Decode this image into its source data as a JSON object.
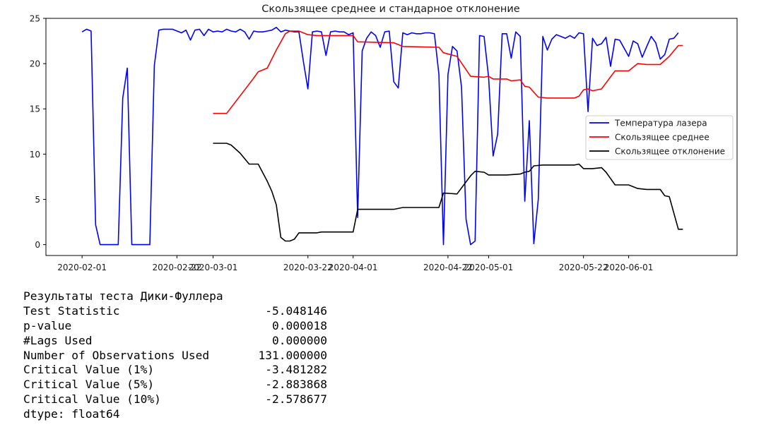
{
  "chart_data": {
    "type": "line",
    "title": "Скользящее среднее и стандарное отклонение",
    "xlabel": "",
    "ylabel": "",
    "ylim": [
      -1.2,
      25
    ],
    "xlim": [
      "2020-01-24",
      "2020-06-25"
    ],
    "yticks": [
      0,
      5,
      10,
      15,
      20,
      25
    ],
    "xticks": [
      {
        "label": "2020-02-01",
        "date": "2020-02-01"
      },
      {
        "label": "2020-02-22",
        "date": "2020-02-22"
      },
      {
        "label": "2020-03-01",
        "date": "2020-03-01"
      },
      {
        "label": "2020-03-22",
        "date": "2020-03-22"
      },
      {
        "label": "2020-04-01",
        "date": "2020-04-01"
      },
      {
        "label": "2020-04-22",
        "date": "2020-04-22"
      },
      {
        "label": "2020-05-01",
        "date": "2020-05-01"
      },
      {
        "label": "2020-05-22",
        "date": "2020-05-22"
      },
      {
        "label": "2020-06-01",
        "date": "2020-06-01"
      }
    ],
    "grid": false,
    "legend_position": "right",
    "series": [
      {
        "name": "Температура лазера",
        "color": "#0000ff",
        "points": [
          [
            "2020-02-01",
            23.5
          ],
          [
            "2020-02-02",
            23.8
          ],
          [
            "2020-02-03",
            23.6
          ],
          [
            "2020-02-04",
            2.2
          ],
          [
            "2020-02-05",
            0
          ],
          [
            "2020-02-09",
            0
          ],
          [
            "2020-02-10",
            16.2
          ],
          [
            "2020-02-11",
            19.5
          ],
          [
            "2020-02-12",
            0
          ],
          [
            "2020-02-16",
            0
          ],
          [
            "2020-02-17",
            19.8
          ],
          [
            "2020-02-18",
            23.7
          ],
          [
            "2020-02-19",
            23.8
          ],
          [
            "2020-02-20",
            23.8
          ],
          [
            "2020-02-21",
            23.8
          ],
          [
            "2020-02-23",
            23.4
          ],
          [
            "2020-02-24",
            23.7
          ],
          [
            "2020-02-25",
            22.6
          ],
          [
            "2020-02-26",
            23.7
          ],
          [
            "2020-02-27",
            23.8
          ],
          [
            "2020-02-28",
            23.1
          ],
          [
            "2020-02-29",
            23.8
          ],
          [
            "2020-03-01",
            23.5
          ],
          [
            "2020-03-02",
            23.6
          ],
          [
            "2020-03-03",
            23.5
          ],
          [
            "2020-03-04",
            23.8
          ],
          [
            "2020-03-05",
            23.6
          ],
          [
            "2020-03-06",
            23.5
          ],
          [
            "2020-03-07",
            23.8
          ],
          [
            "2020-03-08",
            23.5
          ],
          [
            "2020-03-09",
            22.7
          ],
          [
            "2020-03-10",
            23.6
          ],
          [
            "2020-03-11",
            23.5
          ],
          [
            "2020-03-12",
            23.5
          ],
          [
            "2020-03-13",
            23.6
          ],
          [
            "2020-03-14",
            23.7
          ],
          [
            "2020-03-15",
            24.0
          ],
          [
            "2020-03-16",
            23.5
          ],
          [
            "2020-03-17",
            23.7
          ],
          [
            "2020-03-18",
            23.6
          ],
          [
            "2020-03-19",
            23.5
          ],
          [
            "2020-03-20",
            23.5
          ],
          [
            "2020-03-21",
            20.2
          ],
          [
            "2020-03-22",
            17.2
          ],
          [
            "2020-03-23",
            23.5
          ],
          [
            "2020-03-24",
            23.6
          ],
          [
            "2020-03-25",
            23.5
          ],
          [
            "2020-03-26",
            20.9
          ],
          [
            "2020-03-27",
            23.5
          ],
          [
            "2020-03-28",
            23.6
          ],
          [
            "2020-03-29",
            23.5
          ],
          [
            "2020-03-30",
            23.5
          ],
          [
            "2020-03-31",
            23.2
          ],
          [
            "2020-04-01",
            23.4
          ],
          [
            "2020-04-02",
            3.0
          ],
          [
            "2020-04-03",
            21.4
          ],
          [
            "2020-04-04",
            22.8
          ],
          [
            "2020-04-05",
            23.5
          ],
          [
            "2020-04-06",
            23.1
          ],
          [
            "2020-04-07",
            21.8
          ],
          [
            "2020-04-08",
            23.5
          ],
          [
            "2020-04-09",
            23.6
          ],
          [
            "2020-04-10",
            18.0
          ],
          [
            "2020-04-11",
            17.3
          ],
          [
            "2020-04-12",
            23.4
          ],
          [
            "2020-04-13",
            23.2
          ],
          [
            "2020-04-14",
            23.4
          ],
          [
            "2020-04-15",
            23.3
          ],
          [
            "2020-04-16",
            23.3
          ],
          [
            "2020-04-17",
            23.4
          ],
          [
            "2020-04-18",
            23.4
          ],
          [
            "2020-04-19",
            23.3
          ],
          [
            "2020-04-20",
            18.8
          ],
          [
            "2020-04-21",
            0
          ],
          [
            "2020-04-22",
            18.8
          ],
          [
            "2020-04-23",
            21.9
          ],
          [
            "2020-04-24",
            21.4
          ],
          [
            "2020-04-25",
            17.4
          ],
          [
            "2020-04-26",
            2.8
          ],
          [
            "2020-04-27",
            0
          ],
          [
            "2020-04-28",
            0.4
          ],
          [
            "2020-04-29",
            23.1
          ],
          [
            "2020-04-30",
            23.0
          ],
          [
            "2020-05-01",
            18.5
          ],
          [
            "2020-05-02",
            9.8
          ],
          [
            "2020-05-03",
            12.2
          ],
          [
            "2020-05-04",
            23.3
          ],
          [
            "2020-05-05",
            23.3
          ],
          [
            "2020-05-06",
            20.6
          ],
          [
            "2020-05-07",
            23.5
          ],
          [
            "2020-05-08",
            23.0
          ],
          [
            "2020-05-09",
            4.8
          ],
          [
            "2020-05-10",
            13.7
          ],
          [
            "2020-05-11",
            0.1
          ],
          [
            "2020-05-12",
            5.0
          ],
          [
            "2020-05-13",
            23.0
          ],
          [
            "2020-05-14",
            21.5
          ],
          [
            "2020-05-15",
            22.7
          ],
          [
            "2020-05-16",
            23.2
          ],
          [
            "2020-05-17",
            23.0
          ],
          [
            "2020-05-18",
            22.8
          ],
          [
            "2020-05-19",
            23.1
          ],
          [
            "2020-05-20",
            22.8
          ],
          [
            "2020-05-21",
            23.4
          ],
          [
            "2020-05-22",
            23.3
          ],
          [
            "2020-05-23",
            14.7
          ],
          [
            "2020-05-24",
            22.8
          ],
          [
            "2020-05-25",
            22.0
          ],
          [
            "2020-05-26",
            22.2
          ],
          [
            "2020-05-27",
            22.9
          ],
          [
            "2020-05-28",
            19.7
          ],
          [
            "2020-05-29",
            22.7
          ],
          [
            "2020-05-30",
            22.6
          ],
          [
            "2020-05-31",
            21.7
          ],
          [
            "2020-06-01",
            20.8
          ],
          [
            "2020-06-02",
            22.5
          ],
          [
            "2020-06-03",
            22.2
          ],
          [
            "2020-06-04",
            20.7
          ],
          [
            "2020-06-05",
            21.9
          ],
          [
            "2020-06-06",
            23.0
          ],
          [
            "2020-06-07",
            22.3
          ],
          [
            "2020-06-08",
            20.5
          ],
          [
            "2020-06-09",
            21.0
          ],
          [
            "2020-06-10",
            22.7
          ],
          [
            "2020-06-11",
            22.8
          ],
          [
            "2020-06-12",
            23.4
          ]
        ]
      },
      {
        "name": "Скользящее среднее",
        "color": "#ff0000",
        "points": [
          [
            "2020-03-01",
            14.5
          ],
          [
            "2020-03-04",
            14.5
          ],
          [
            "2020-03-08",
            17.1
          ],
          [
            "2020-03-10",
            18.4
          ],
          [
            "2020-03-11",
            19.1
          ],
          [
            "2020-03-13",
            19.5
          ],
          [
            "2020-03-15",
            21.5
          ],
          [
            "2020-03-17",
            23.3
          ],
          [
            "2020-03-18",
            23.6
          ],
          [
            "2020-03-20",
            23.6
          ],
          [
            "2020-03-22",
            23.2
          ],
          [
            "2020-03-24",
            23.1
          ],
          [
            "2020-03-31",
            23.1
          ],
          [
            "2020-04-01",
            23.1
          ],
          [
            "2020-04-02",
            22.4
          ],
          [
            "2020-04-10",
            22.3
          ],
          [
            "2020-04-12",
            21.9
          ],
          [
            "2020-04-20",
            21.8
          ],
          [
            "2020-04-21",
            21.2
          ],
          [
            "2020-04-24",
            20.8
          ],
          [
            "2020-04-27",
            18.6
          ],
          [
            "2020-04-30",
            18.5
          ],
          [
            "2020-05-01",
            18.6
          ],
          [
            "2020-05-02",
            18.3
          ],
          [
            "2020-05-05",
            18.3
          ],
          [
            "2020-05-06",
            18.1
          ],
          [
            "2020-05-08",
            18.2
          ],
          [
            "2020-05-09",
            17.5
          ],
          [
            "2020-05-10",
            17.4
          ],
          [
            "2020-05-12",
            16.3
          ],
          [
            "2020-05-14",
            16.2
          ],
          [
            "2020-05-20",
            16.2
          ],
          [
            "2020-05-21",
            16.4
          ],
          [
            "2020-05-22",
            17.1
          ],
          [
            "2020-05-23",
            17.2
          ],
          [
            "2020-05-24",
            17.0
          ],
          [
            "2020-05-26",
            17.2
          ],
          [
            "2020-05-29",
            19.2
          ],
          [
            "2020-06-01",
            19.2
          ],
          [
            "2020-06-03",
            20.0
          ],
          [
            "2020-06-05",
            19.9
          ],
          [
            "2020-06-08",
            19.9
          ],
          [
            "2020-06-10",
            20.8
          ],
          [
            "2020-06-12",
            22.0
          ],
          [
            "2020-06-13",
            22.0
          ]
        ]
      },
      {
        "name": "Скользящее отклонение",
        "color": "#000000",
        "points": [
          [
            "2020-03-01",
            11.2
          ],
          [
            "2020-03-04",
            11.2
          ],
          [
            "2020-03-05",
            11.0
          ],
          [
            "2020-03-07",
            10.1
          ],
          [
            "2020-03-09",
            8.9
          ],
          [
            "2020-03-11",
            8.9
          ],
          [
            "2020-03-13",
            7.0
          ],
          [
            "2020-03-14",
            5.9
          ],
          [
            "2020-03-15",
            4.4
          ],
          [
            "2020-03-16",
            0.8
          ],
          [
            "2020-03-17",
            0.4
          ],
          [
            "2020-03-18",
            0.4
          ],
          [
            "2020-03-19",
            0.6
          ],
          [
            "2020-03-20",
            1.3
          ],
          [
            "2020-03-24",
            1.3
          ],
          [
            "2020-03-25",
            1.4
          ],
          [
            "2020-03-31",
            1.4
          ],
          [
            "2020-04-01",
            1.4
          ],
          [
            "2020-04-02",
            3.9
          ],
          [
            "2020-04-10",
            3.9
          ],
          [
            "2020-04-12",
            4.1
          ],
          [
            "2020-04-20",
            4.1
          ],
          [
            "2020-04-21",
            5.7
          ],
          [
            "2020-04-24",
            5.6
          ],
          [
            "2020-04-27",
            7.6
          ],
          [
            "2020-04-28",
            8.1
          ],
          [
            "2020-04-30",
            8.0
          ],
          [
            "2020-05-01",
            7.7
          ],
          [
            "2020-05-05",
            7.7
          ],
          [
            "2020-05-08",
            7.8
          ],
          [
            "2020-05-09",
            8.0
          ],
          [
            "2020-05-10",
            8.1
          ],
          [
            "2020-05-11",
            8.7
          ],
          [
            "2020-05-13",
            8.8
          ],
          [
            "2020-05-20",
            8.8
          ],
          [
            "2020-05-21",
            8.9
          ],
          [
            "2020-05-22",
            8.4
          ],
          [
            "2020-05-24",
            8.4
          ],
          [
            "2020-05-26",
            8.5
          ],
          [
            "2020-05-27",
            8.0
          ],
          [
            "2020-05-29",
            6.6
          ],
          [
            "2020-06-01",
            6.6
          ],
          [
            "2020-06-03",
            6.2
          ],
          [
            "2020-06-05",
            6.1
          ],
          [
            "2020-06-08",
            6.1
          ],
          [
            "2020-06-09",
            5.4
          ],
          [
            "2020-06-10",
            5.3
          ],
          [
            "2020-06-12",
            1.7
          ],
          [
            "2020-06-13",
            1.7
          ]
        ]
      }
    ]
  },
  "output": {
    "lines": [
      {
        "label": "Результаты теста Дики-Фуллера",
        "value": ""
      },
      {
        "label": "Test Statistic",
        "value": "-5.048146"
      },
      {
        "label": "p-value",
        "value": "0.000018"
      },
      {
        "label": "#Lags Used",
        "value": "0.000000"
      },
      {
        "label": "Number of Observations Used",
        "value": "131.000000"
      },
      {
        "label": "Critical Value (1%)",
        "value": "-3.481282"
      },
      {
        "label": "Critical Value (5%)",
        "value": "-2.883868"
      },
      {
        "label": "Critical Value (10%)",
        "value": "-2.578677"
      },
      {
        "label": "dtype: float64",
        "value": ""
      }
    ]
  }
}
